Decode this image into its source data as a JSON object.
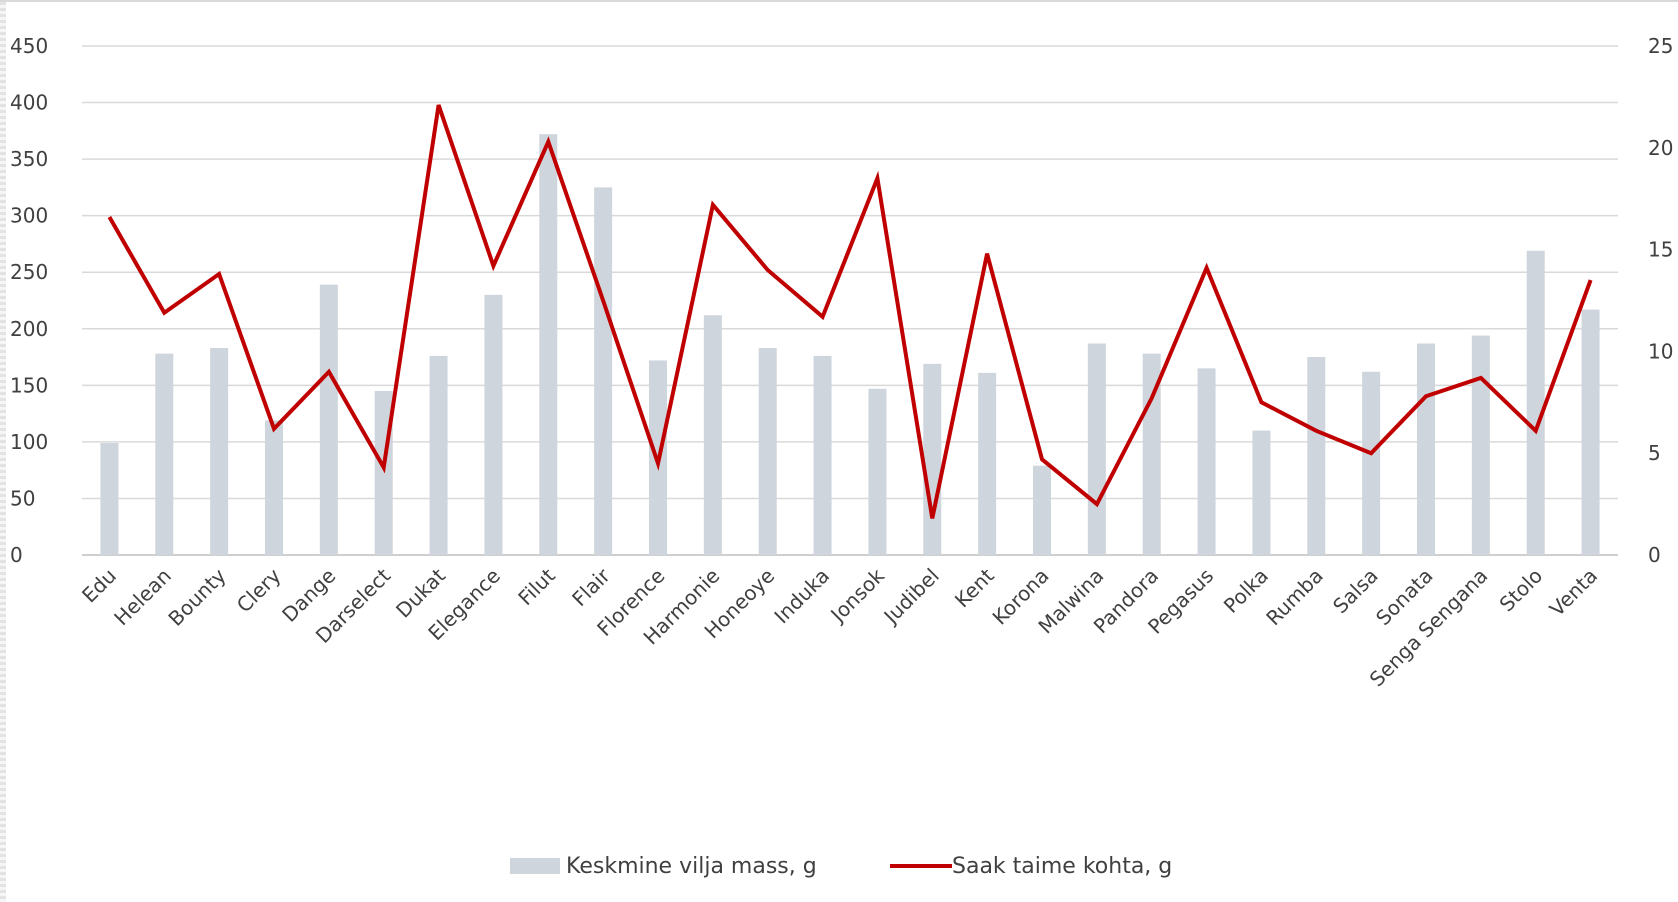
{
  "chart_data": {
    "type": "bar",
    "categories": [
      "Edu",
      "Helean",
      "Bounty",
      "Clery",
      "Dange",
      "Darselect",
      "Dukat",
      "Elegance",
      "Filut",
      "Flair",
      "Florence",
      "Harmonie",
      "Honeoye",
      "Induka",
      "Jonsok",
      "Judibel",
      "Kent",
      "Korona",
      "Malwina",
      "Pandora",
      "Pegasus",
      "Polka",
      "Rumba",
      "Salsa",
      "Sonata",
      "Senga Sengana",
      "Stolo",
      "Venta"
    ],
    "series": [
      {
        "name": "Keskmine vilja mass, g",
        "type": "bar",
        "axis": "left",
        "color": "#cfd5dd",
        "values": [
          99,
          178,
          183,
          119,
          239,
          145,
          176,
          230,
          372,
          325,
          172,
          212,
          183,
          176,
          147,
          169,
          161,
          79,
          187,
          178,
          165,
          110,
          175,
          162,
          187,
          194,
          269,
          217
        ]
      },
      {
        "name": "Saak taime kohta, g",
        "type": "line",
        "axis": "right",
        "color": "#c00000",
        "values": [
          16.6,
          11.9,
          13.8,
          6.2,
          9.0,
          4.3,
          22.1,
          14.2,
          20.3,
          12.5,
          4.5,
          17.2,
          14.0,
          11.7,
          18.5,
          1.8,
          14.8,
          4.7,
          2.5,
          7.7,
          14.1,
          7.5,
          6.1,
          5.0,
          7.8,
          8.7,
          6.1,
          13.5
        ]
      }
    ],
    "y_left": {
      "ticks": [
        "0",
        "50",
        "100",
        "150",
        "200",
        "250",
        "300",
        "350",
        "400",
        "450"
      ],
      "lim": [
        0,
        450
      ]
    },
    "y_right": {
      "ticks": [
        "0",
        "5",
        "10",
        "15",
        "20",
        "25"
      ],
      "lim": [
        0,
        25
      ]
    },
    "grid": true,
    "legend_position": "bottom",
    "title": "",
    "xlabel": "",
    "ylabel": ""
  }
}
